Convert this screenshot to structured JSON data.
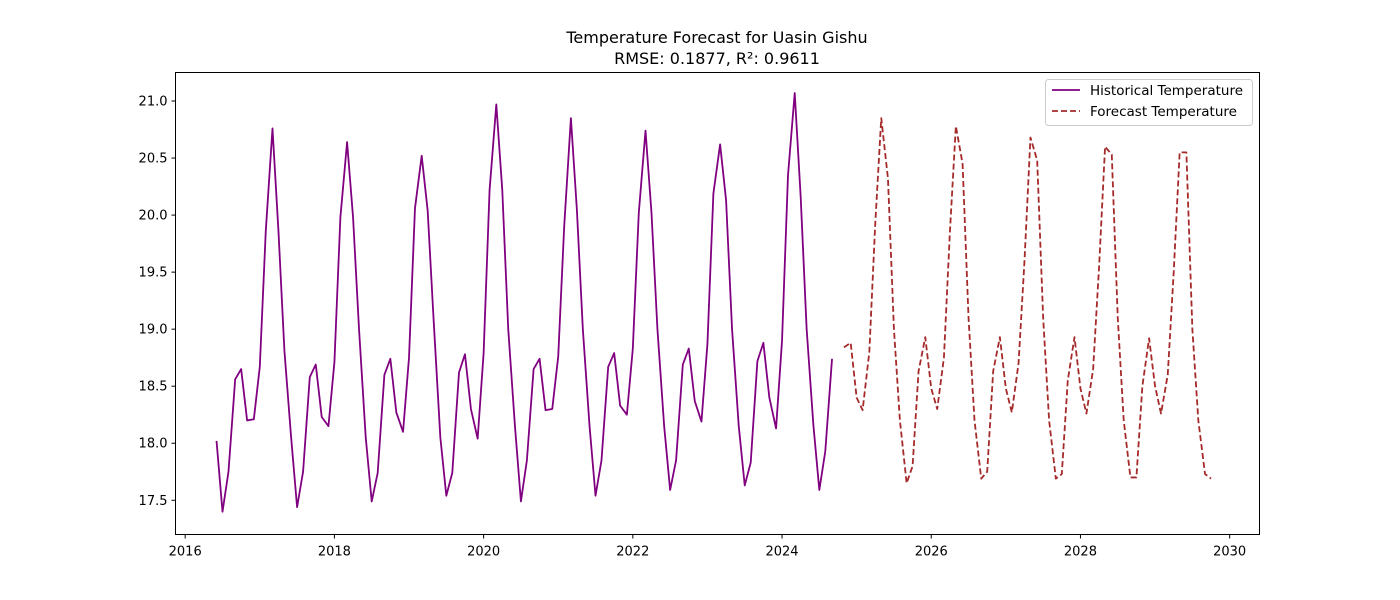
{
  "chart_data": {
    "type": "line",
    "title": "Temperature Forecast for Uasin Gishu",
    "subtitle": "RMSE: 0.1877, R²: 0.9611",
    "xlabel": "",
    "ylabel": "",
    "xlim": [
      2015.87,
      2030.4
    ],
    "ylim": [
      17.2,
      21.25
    ],
    "x_ticks": [
      2016,
      2018,
      2020,
      2022,
      2024,
      2026,
      2028,
      2030
    ],
    "y_ticks": [
      17.5,
      18.0,
      18.5,
      19.0,
      19.5,
      20.0,
      20.5,
      21.0
    ],
    "y_tick_labels": [
      "17.5",
      "18.0",
      "18.5",
      "19.0",
      "19.5",
      "20.0",
      "20.5",
      "21.0"
    ],
    "grid": false,
    "legend_position": "top-right",
    "series": [
      {
        "name": "Historical Temperature",
        "color": "#800080",
        "style": "solid",
        "x": [
          2016.42,
          2016.5,
          2016.58,
          2016.67,
          2016.75,
          2016.83,
          2016.92,
          2017.0,
          2017.08,
          2017.17,
          2017.25,
          2017.33,
          2017.42,
          2017.5,
          2017.58,
          2017.67,
          2017.75,
          2017.83,
          2017.92,
          2018.0,
          2018.08,
          2018.17,
          2018.25,
          2018.33,
          2018.42,
          2018.5,
          2018.58,
          2018.67,
          2018.75,
          2018.83,
          2018.92,
          2019.0,
          2019.08,
          2019.17,
          2019.25,
          2019.33,
          2019.42,
          2019.5,
          2019.58,
          2019.67,
          2019.75,
          2019.83,
          2019.92,
          2020.0,
          2020.08,
          2020.17,
          2020.25,
          2020.33,
          2020.42,
          2020.5,
          2020.58,
          2020.67,
          2020.75,
          2020.83,
          2020.92,
          2021.0,
          2021.08,
          2021.17,
          2021.25,
          2021.33,
          2021.42,
          2021.5,
          2021.58,
          2021.67,
          2021.75,
          2021.83,
          2021.92,
          2022.0,
          2022.08,
          2022.17,
          2022.25,
          2022.33,
          2022.42,
          2022.5,
          2022.58,
          2022.67,
          2022.75,
          2022.83,
          2022.92,
          2023.0,
          2023.08,
          2023.17,
          2023.25,
          2023.33,
          2023.42,
          2023.5,
          2023.58,
          2023.67,
          2023.75,
          2023.83,
          2023.92,
          2024.0,
          2024.08,
          2024.17,
          2024.25,
          2024.33,
          2024.42,
          2024.5,
          2024.58,
          2024.67
        ],
        "y": [
          18.02,
          17.4,
          17.75,
          18.56,
          18.65,
          18.2,
          18.21,
          18.67,
          19.86,
          20.76,
          19.86,
          18.81,
          18.05,
          17.44,
          17.75,
          18.58,
          18.69,
          18.23,
          18.15,
          18.71,
          19.98,
          20.64,
          19.98,
          19.0,
          18.05,
          17.49,
          17.74,
          18.6,
          18.74,
          18.27,
          18.1,
          18.75,
          20.06,
          20.52,
          20.04,
          19.08,
          18.05,
          17.54,
          17.74,
          18.62,
          18.78,
          18.3,
          18.04,
          18.79,
          20.22,
          20.97,
          20.22,
          19.0,
          18.15,
          17.49,
          17.85,
          18.65,
          18.74,
          18.29,
          18.3,
          18.76,
          19.9,
          20.85,
          20.05,
          19.0,
          18.15,
          17.54,
          17.85,
          18.67,
          18.79,
          18.33,
          18.25,
          18.83,
          20.02,
          20.74,
          20.02,
          19.0,
          18.15,
          17.59,
          17.85,
          18.69,
          18.83,
          18.37,
          18.19,
          18.87,
          20.19,
          20.62,
          20.13,
          19.0,
          18.15,
          17.63,
          17.83,
          18.72,
          18.88,
          18.4,
          18.13,
          18.9,
          20.35,
          21.07,
          20.16,
          19.0,
          18.16,
          17.59,
          17.93,
          18.74
        ]
      },
      {
        "name": "Forecast Temperature",
        "color": "#a52a2a",
        "style": "dashed",
        "x": [
          2024.83,
          2024.92,
          2025.0,
          2025.08,
          2025.17,
          2025.25,
          2025.33,
          2025.42,
          2025.5,
          2025.58,
          2025.67,
          2025.75,
          2025.83,
          2025.92,
          2026.0,
          2026.08,
          2026.17,
          2026.25,
          2026.33,
          2026.42,
          2026.5,
          2026.58,
          2026.67,
          2026.75,
          2026.83,
          2026.92,
          2027.0,
          2027.08,
          2027.17,
          2027.25,
          2027.33,
          2027.42,
          2027.5,
          2027.58,
          2027.67,
          2027.75,
          2027.83,
          2027.92,
          2028.0,
          2028.08,
          2028.17,
          2028.25,
          2028.33,
          2028.42,
          2028.5,
          2028.58,
          2028.67,
          2028.75,
          2028.83,
          2028.92,
          2029.0,
          2029.08,
          2029.17,
          2029.25,
          2029.33,
          2029.42,
          2029.5,
          2029.58,
          2029.67,
          2029.75
        ],
        "y": [
          18.84,
          18.88,
          18.4,
          18.29,
          18.8,
          19.93,
          20.85,
          20.32,
          19.0,
          18.2,
          17.65,
          17.8,
          18.63,
          18.93,
          18.48,
          18.3,
          18.75,
          19.85,
          20.78,
          20.45,
          19.1,
          18.2,
          17.69,
          17.75,
          18.63,
          18.93,
          18.48,
          18.27,
          18.7,
          19.6,
          20.68,
          20.48,
          19.1,
          18.2,
          17.69,
          17.73,
          18.55,
          18.93,
          18.48,
          18.26,
          18.65,
          19.55,
          20.6,
          20.53,
          19.1,
          18.2,
          17.7,
          17.7,
          18.5,
          18.92,
          18.5,
          18.26,
          18.6,
          19.5,
          20.55,
          20.55,
          19.0,
          18.2,
          17.73,
          17.69
        ]
      }
    ]
  }
}
